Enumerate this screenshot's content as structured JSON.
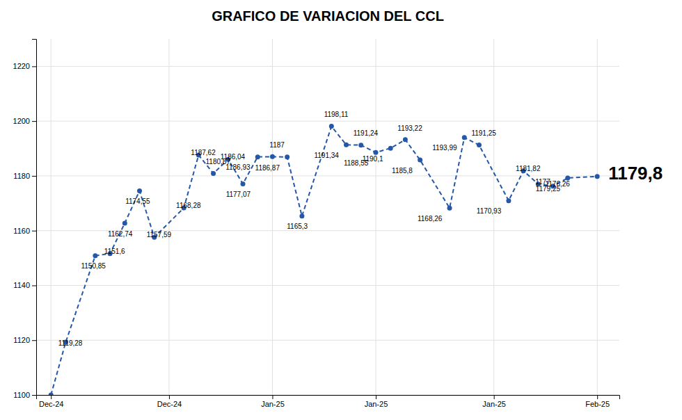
{
  "chart_data": {
    "type": "line",
    "title": "GRAFICO DE VARIACION DEL CCL",
    "x": [
      0,
      1,
      3,
      4,
      5,
      6,
      7,
      9,
      10,
      11,
      12,
      13,
      14,
      15,
      16,
      17,
      19,
      20,
      21,
      22,
      23,
      24,
      25,
      27,
      28,
      29,
      31,
      32,
      33,
      34,
      35,
      37
    ],
    "values": [
      1100,
      1119.28,
      1150.85,
      1151.6,
      1162.74,
      1174.55,
      1157.59,
      1168.28,
      1187.62,
      1180.87,
      1186.04,
      1177.07,
      1186.93,
      1187,
      1186.87,
      1165.3,
      1198.11,
      1191.34,
      1191.24,
      1188.55,
      1190.1,
      1193.22,
      1185.8,
      1168.26,
      1193.99,
      1191.25,
      1170.93,
      1181.82,
      1177,
      1176.26,
      1179.25,
      1179.8
    ],
    "value_labels": [
      null,
      "1119,28",
      "1150,85",
      "1151,6",
      "1162,74",
      "1174,55",
      "1157,59",
      "1168,28",
      "1187,62",
      "1180,87",
      "1186,04",
      "1177,07",
      "1186,93",
      "1187",
      "1186,87",
      "1165,3",
      "1198,11",
      "1191,34",
      "1191,24",
      "1188,55",
      "1190,1",
      "1193,22",
      "1185,8",
      "1168,26",
      "1193,99",
      "1191,25",
      "1170,93",
      "1181,82",
      "1177",
      "1176,26",
      "1179,25",
      "1179,8"
    ],
    "data_labels": true,
    "color": "#2457A7",
    "marker": "circle",
    "line_style": "dashed",
    "xlim": [
      -1,
      38.5
    ],
    "xticks": [
      {
        "value": 0,
        "label": "Dec-24"
      },
      {
        "value": 8,
        "label": "Dec-24"
      },
      {
        "value": 15,
        "label": "Jan-25"
      },
      {
        "value": 22,
        "label": "Jan-25"
      },
      {
        "value": 30,
        "label": "Jan-25"
      },
      {
        "value": 37,
        "label": "Feb-25"
      }
    ],
    "ylim": [
      1100,
      1230
    ],
    "yticks": [
      1100,
      1120,
      1140,
      1160,
      1180,
      1200,
      1220
    ],
    "grid": true
  }
}
